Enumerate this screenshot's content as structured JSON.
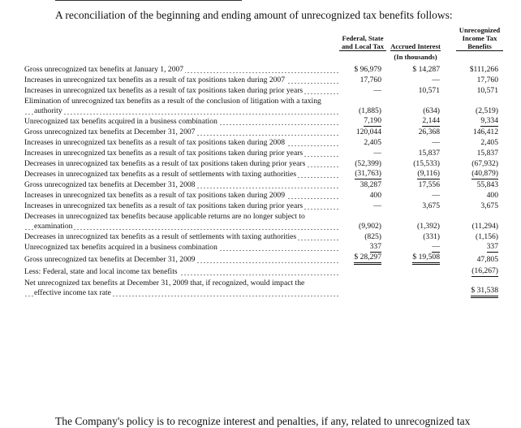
{
  "intro": "A reconciliation of the beginning and ending amount of unrecognized tax benefits follows:",
  "table": {
    "headers": [
      "Federal, State and Local Tax",
      "Accrued Interest",
      "Unrecognized Income Tax Benefits"
    ],
    "unit": "(In thousands)",
    "rows": [
      [
        "Gross unrecognized tax benefits at January 1, 2007",
        "$ 96,979",
        "$ 14,287",
        "$111,266"
      ],
      [
        "Increases in unrecognized tax benefits as a result of tax positions taken during 2007",
        "17,760",
        "—",
        "17,760"
      ],
      [
        "Increases in unrecognized tax benefits as a result of tax positions taken during prior years",
        "—",
        "10,571",
        "10,571"
      ],
      [
        "Elimination of unrecognized tax benefits as a result of the conclusion of litigation with a taxing authority",
        "(1,885)",
        "(634)",
        "(2,519)"
      ],
      [
        "Unrecognized tax benefits acquired in a business combination",
        "7,190",
        "2,144",
        "9,334"
      ],
      [
        "Gross unrecognized tax benefits at December 31, 2007",
        "120,044",
        "26,368",
        "146,412"
      ],
      [
        "Increases in unrecognized tax benefits as a result of tax positions taken during 2008",
        "2,405",
        "—",
        "2,405"
      ],
      [
        "Increases in unrecognized tax benefits as a result of tax positions taken during prior years",
        "—",
        "15,837",
        "15,837"
      ],
      [
        "Decreases in unrecognized tax benefits as a result of tax positions taken during prior years",
        "(52,399)",
        "(15,533)",
        "(67,932)"
      ],
      [
        "Decreases in unrecognized tax benefits as a result of settlements with taxing authorities",
        "(31,763)",
        "(9,116)",
        "(40,879)"
      ],
      [
        "Gross unrecognized tax benefits at December 31, 2008",
        "38,287",
        "17,556",
        "55,843"
      ],
      [
        "Increases in unrecognized tax benefits as a result of tax positions taken during 2009",
        "400",
        "—",
        "400"
      ],
      [
        "Increases in unrecognized tax benefits as a result of tax positions taken during prior years",
        "—",
        "3,675",
        "3,675"
      ],
      [
        "Decreases in unrecognized tax benefits because applicable returns are no longer subject to examination",
        "(9,902)",
        "(1,392)",
        "(11,294)"
      ],
      [
        "Decreases in unrecognized tax benefits as a result of settlements with taxing authorities",
        "(825)",
        "(331)",
        "(1,156)"
      ],
      [
        "Unrecognized tax benefits acquired in a business combination",
        "337",
        "—",
        "337"
      ],
      [
        "Gross unrecognized tax benefits at December 31, 2009",
        "$ 28,297",
        "$ 19,508",
        "47,805"
      ],
      [
        "Less: Federal, state and local income tax benefits",
        null,
        null,
        "(16,267)"
      ],
      [
        "Net unrecognized tax benefits at December 31, 2009 that, if recognized, would impact the effective income tax rate",
        null,
        null,
        "$ 31,538"
      ]
    ]
  },
  "footer": "The Company's policy is to recognize interest and penalties, if any, related to unrecognized tax"
}
